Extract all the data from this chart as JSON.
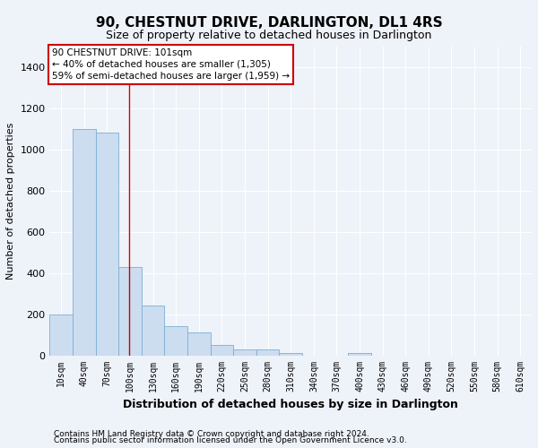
{
  "title": "90, CHESTNUT DRIVE, DARLINGTON, DL1 4RS",
  "subtitle": "Size of property relative to detached houses in Darlington",
  "xlabel": "Distribution of detached houses by size in Darlington",
  "ylabel": "Number of detached properties",
  "footnote1": "Contains HM Land Registry data © Crown copyright and database right 2024.",
  "footnote2": "Contains public sector information licensed under the Open Government Licence v3.0.",
  "bar_color": "#ccddf0",
  "bar_edge_color": "#7aafd4",
  "categories": [
    "10sqm",
    "40sqm",
    "70sqm",
    "100sqm",
    "130sqm",
    "160sqm",
    "190sqm",
    "220sqm",
    "250sqm",
    "280sqm",
    "310sqm",
    "340sqm",
    "370sqm",
    "400sqm",
    "430sqm",
    "460sqm",
    "490sqm",
    "520sqm",
    "550sqm",
    "580sqm",
    "610sqm"
  ],
  "values": [
    200,
    1100,
    1080,
    430,
    240,
    140,
    110,
    50,
    30,
    30,
    10,
    0,
    0,
    10,
    0,
    0,
    0,
    0,
    0,
    0,
    0
  ],
  "ylim": [
    0,
    1500
  ],
  "yticks": [
    0,
    200,
    400,
    600,
    800,
    1000,
    1200,
    1400
  ],
  "property_line_x": 2.97,
  "annotation_text": "90 CHESTNUT DRIVE: 101sqm\n← 40% of detached houses are smaller (1,305)\n59% of semi-detached houses are larger (1,959) →",
  "annotation_box_color": "#ffffff",
  "annotation_box_edge": "#cc0000",
  "annotation_line_color": "#cc0000",
  "background_color": "#eef2f9",
  "grid_color": "#ffffff",
  "title_fontsize": 11,
  "subtitle_fontsize": 9,
  "ylabel_fontsize": 8,
  "xlabel_fontsize": 9,
  "tick_fontsize": 7,
  "annotation_fontsize": 7.5,
  "footnote_fontsize": 6.5
}
